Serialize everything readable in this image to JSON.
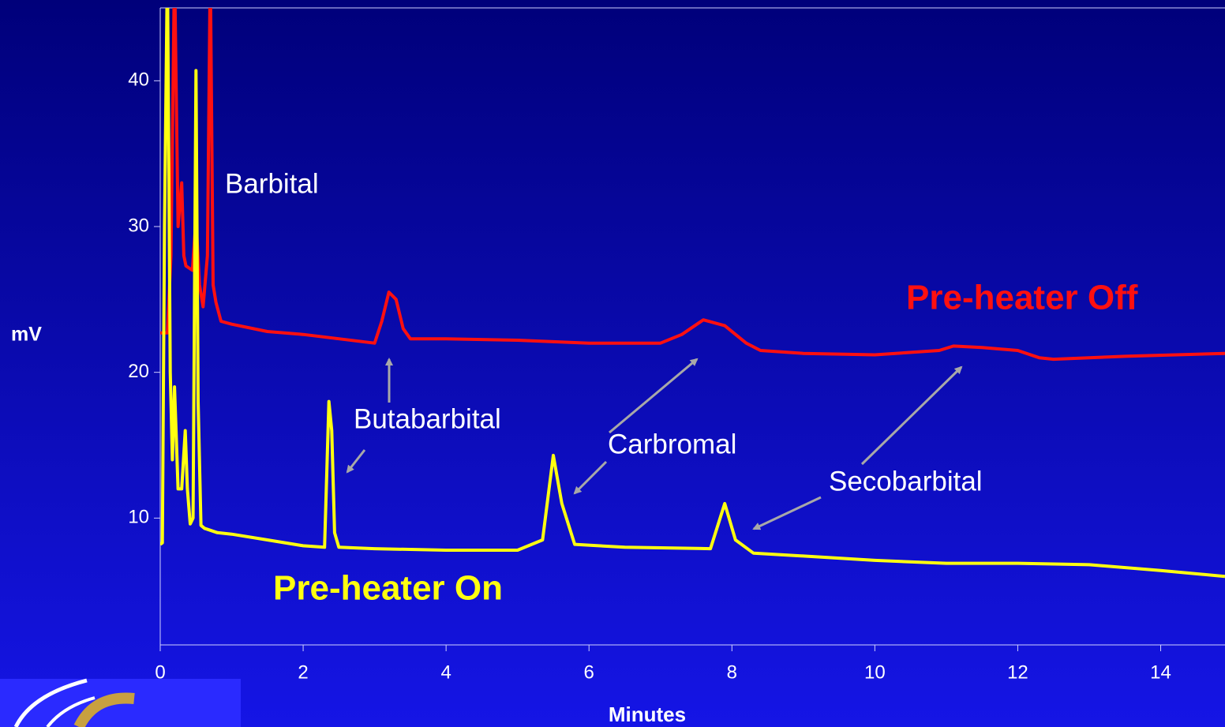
{
  "chart_data": {
    "type": "line",
    "xlabel": "Minutes",
    "ylabel": "mV",
    "xlim": [
      0,
      14.9
    ],
    "xticks": [
      0,
      2,
      4,
      6,
      8,
      10,
      12,
      14
    ],
    "ylim": [
      1.3,
      45
    ],
    "yticks": [
      10,
      20,
      30,
      40
    ],
    "annotations": [
      "Barbital",
      "Butabarbital",
      "Carbromal",
      "Secobarbital"
    ],
    "series": [
      {
        "name": "Pre-heater Off",
        "color": "#ff1010",
        "x": [
          0,
          0.1,
          0.15,
          0.2,
          0.25,
          0.3,
          0.33,
          0.36,
          0.45,
          0.5,
          0.55,
          0.6,
          0.66,
          0.7,
          0.74,
          0.78,
          0.85,
          1,
          1.5,
          2,
          2.5,
          3,
          3.1,
          3.2,
          3.3,
          3.4,
          3.5,
          4,
          5,
          6,
          7,
          7.3,
          7.6,
          7.9,
          8.2,
          8.4,
          9,
          10,
          10.9,
          11.1,
          11.5,
          12,
          12.3,
          12.5,
          13.5,
          14.9
        ],
        "values": [
          22.7,
          22.7,
          28,
          48,
          30,
          33,
          28,
          27.3,
          27,
          30.5,
          26,
          24.5,
          28,
          48,
          26,
          24.8,
          23.5,
          23.3,
          22.8,
          22.6,
          22.3,
          22,
          23.5,
          25.5,
          25,
          23,
          22.3,
          22.3,
          22.2,
          22,
          22,
          22.6,
          23.6,
          23.2,
          22,
          21.5,
          21.3,
          21.2,
          21.5,
          21.8,
          21.7,
          21.5,
          21,
          20.9,
          21.1,
          21.3
        ]
      },
      {
        "name": "Pre-heater On",
        "color": "#ffff10",
        "x": [
          0,
          0.03,
          0.06,
          0.1,
          0.14,
          0.17,
          0.2,
          0.25,
          0.3,
          0.35,
          0.38,
          0.42,
          0.46,
          0.5,
          0.53,
          0.57,
          0.62,
          0.8,
          1,
          1.5,
          2,
          2.3,
          2.36,
          2.4,
          2.44,
          2.5,
          3,
          4,
          5,
          5.35,
          5.5,
          5.62,
          5.8,
          6.5,
          7.7,
          7.9,
          8.05,
          8.3,
          9,
          10,
          11,
          12,
          13,
          14,
          14.9
        ],
        "values": [
          8.2,
          8.3,
          30,
          48,
          20,
          14,
          19,
          12,
          12,
          16,
          12,
          9.6,
          10,
          40.7,
          18,
          9.5,
          9.3,
          9,
          8.9,
          8.5,
          8.1,
          8,
          18,
          16,
          9,
          8,
          7.9,
          7.8,
          7.8,
          8.5,
          14.3,
          11,
          8.2,
          8,
          7.9,
          11,
          8.5,
          7.6,
          7.4,
          7.1,
          6.9,
          6.9,
          6.8,
          6.4,
          6
        ]
      }
    ]
  }
}
